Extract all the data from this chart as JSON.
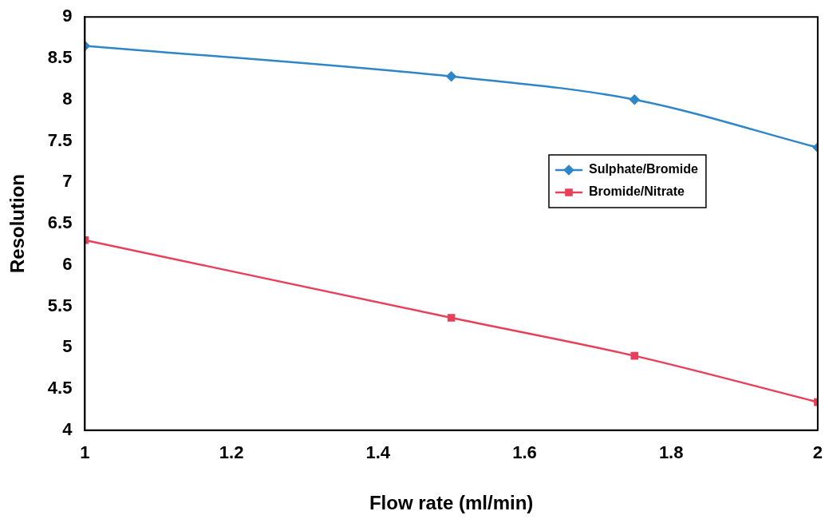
{
  "chart_data": {
    "type": "line",
    "xlabel": "Flow rate (ml/min)",
    "ylabel": "Resolution",
    "x": [
      1,
      1.5,
      1.75,
      2
    ],
    "series": [
      {
        "name": "Sulphate/Bromide",
        "color": "#2e86c8",
        "marker": "diamond",
        "values": [
          8.65,
          8.28,
          8.0,
          7.42
        ]
      },
      {
        "name": "Bromide/Nitrate",
        "color": "#e8405a",
        "marker": "square",
        "values": [
          6.3,
          5.36,
          4.9,
          4.34
        ]
      }
    ],
    "xlim": [
      1,
      2
    ],
    "xticks": [
      1,
      1.2,
      1.4,
      1.6,
      1.8,
      2
    ],
    "ylim": [
      4,
      9
    ],
    "yticks": [
      4,
      4.5,
      5,
      5.5,
      6,
      6.5,
      7,
      7.5,
      8,
      8.5,
      9
    ],
    "grid": false,
    "legend": "right",
    "line_style": "solid"
  }
}
